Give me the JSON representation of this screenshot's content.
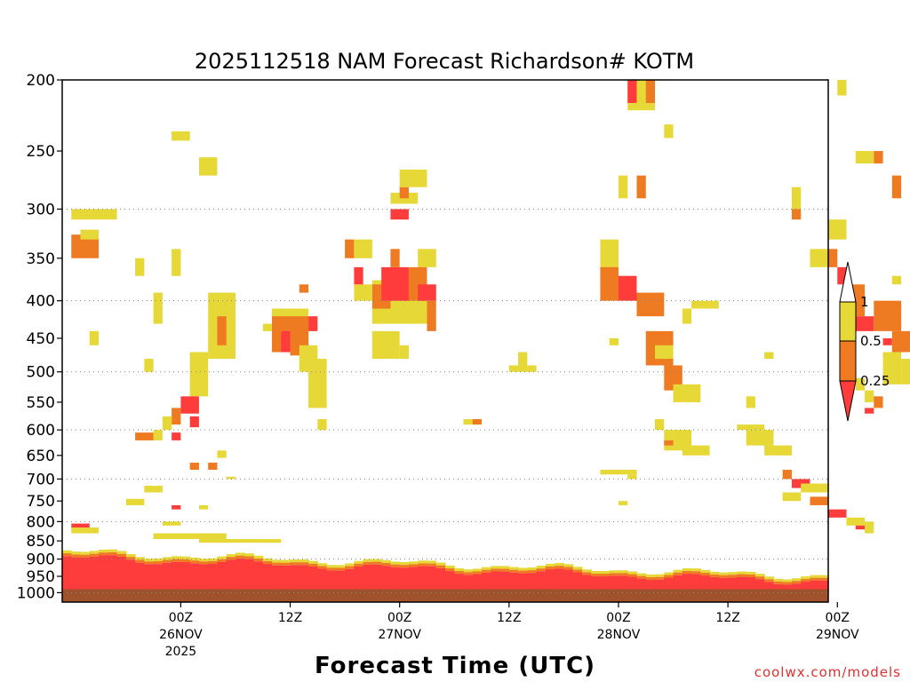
{
  "chart_data": {
    "type": "heatmap",
    "title": "2025112518 NAM Forecast Richardson# KOTM",
    "xlabel": "Forecast Time (UTC)",
    "ylabel": "",
    "credit": "coolwx.com/models",
    "x_range_hours": [
      -7,
      77
    ],
    "x_ticks": [
      {
        "hour": 6,
        "line1": "00Z",
        "line2": "26NOV",
        "line3": "2025"
      },
      {
        "hour": 18,
        "line1": "12Z",
        "line2": "",
        "line3": ""
      },
      {
        "hour": 30,
        "line1": "00Z",
        "line2": "27NOV",
        "line3": ""
      },
      {
        "hour": 42,
        "line1": "12Z",
        "line2": "",
        "line3": ""
      },
      {
        "hour": 54,
        "line1": "00Z",
        "line2": "28NOV",
        "line3": ""
      },
      {
        "hour": 66,
        "line1": "12Z",
        "line2": "",
        "line3": ""
      },
      {
        "hour": 78,
        "line1": "00Z",
        "line2": "29NOV",
        "line3": ""
      }
    ],
    "y_range_hPa": [
      200,
      1030
    ],
    "y_ticks": [
      200,
      250,
      300,
      350,
      400,
      450,
      500,
      550,
      600,
      650,
      700,
      750,
      800,
      850,
      900,
      950,
      1000
    ],
    "y_gridlines": [
      300,
      400,
      500,
      600,
      700,
      800,
      900,
      1000
    ],
    "legend": {
      "position": "right",
      "levels": [
        "1",
        "0.5",
        "0.25"
      ],
      "bins": [
        {
          "range": "0.5-1",
          "color": "#e6d836"
        },
        {
          "range": "0.25-0.5",
          "color": "#ee7a22"
        },
        {
          "range": "<0.25",
          "color": "#ff3c3c"
        }
      ]
    },
    "colors": {
      "yellow": "#e6d836",
      "orange": "#ee7a22",
      "red": "#ff3c3c",
      "ground": "#a0522d"
    },
    "surface_pressure_hPa": 1000,
    "cells": [
      [
        "y",
        -6,
        300,
        310,
        5
      ],
      [
        "o",
        -6,
        325,
        350,
        3
      ],
      [
        "y",
        -5,
        320,
        330,
        2
      ],
      [
        "y",
        5,
        235,
        242,
        2
      ],
      [
        "y",
        8,
        255,
        270,
        2
      ],
      [
        "y",
        3,
        390,
        430,
        1
      ],
      [
        "y",
        5,
        340,
        370,
        1
      ],
      [
        "y",
        1,
        350,
        370,
        1
      ],
      [
        "y",
        -4,
        440,
        460,
        1
      ],
      [
        "y",
        2,
        480,
        500,
        1
      ],
      [
        "y",
        9,
        390,
        480,
        3
      ],
      [
        "o",
        10,
        420,
        460,
        1
      ],
      [
        "y",
        7,
        470,
        540,
        2
      ],
      [
        "r",
        6,
        540,
        570,
        2
      ],
      [
        "o",
        5,
        560,
        590,
        1
      ],
      [
        "r",
        7,
        575,
        595,
        1
      ],
      [
        "y",
        4,
        575,
        600,
        1
      ],
      [
        "y",
        3,
        600,
        620,
        1
      ],
      [
        "o",
        1,
        605,
        620,
        2
      ],
      [
        "r",
        5,
        605,
        620,
        1
      ],
      [
        "o",
        7,
        665,
        680,
        1
      ],
      [
        "o",
        9,
        665,
        680,
        1
      ],
      [
        "y",
        10,
        640,
        655,
        1
      ],
      [
        "y",
        11,
        695,
        700,
        1
      ],
      [
        "y",
        2,
        715,
        730,
        2
      ],
      [
        "y",
        0,
        745,
        760,
        2
      ],
      [
        "r",
        5,
        760,
        770,
        1
      ],
      [
        "y",
        8,
        760,
        770,
        1
      ],
      [
        "r",
        -6,
        805,
        815,
        2
      ],
      [
        "y",
        -6,
        815,
        830,
        3
      ],
      [
        "y",
        4,
        800,
        810,
        2
      ],
      [
        "y",
        3,
        830,
        845,
        8
      ],
      [
        "y",
        8,
        845,
        855,
        9
      ],
      [
        "y",
        16,
        410,
        460,
        4
      ],
      [
        "o",
        16,
        420,
        470,
        4
      ],
      [
        "r",
        17,
        440,
        470,
        1
      ],
      [
        "o",
        18,
        430,
        475,
        2
      ],
      [
        "y",
        19,
        460,
        500,
        2
      ],
      [
        "y",
        20,
        480,
        560,
        2
      ],
      [
        "o",
        19,
        380,
        390,
        1
      ],
      [
        "r",
        20,
        420,
        440,
        1
      ],
      [
        "y",
        21,
        580,
        600,
        1
      ],
      [
        "y",
        15,
        430,
        440,
        1
      ],
      [
        "y",
        25,
        380,
        400,
        2
      ],
      [
        "y",
        25,
        330,
        350,
        2
      ],
      [
        "o",
        24,
        330,
        350,
        1
      ],
      [
        "r",
        25,
        360,
        380,
        1
      ],
      [
        "y",
        27,
        375,
        430,
        6
      ],
      [
        "o",
        27,
        380,
        410,
        2
      ],
      [
        "r",
        28,
        360,
        400,
        3
      ],
      [
        "o",
        29,
        340,
        360,
        1
      ],
      [
        "r",
        29,
        300,
        310,
        2
      ],
      [
        "y",
        29,
        285,
        295,
        3
      ],
      [
        "o",
        30,
        280,
        290,
        1
      ],
      [
        "y",
        30,
        265,
        280,
        3
      ],
      [
        "y",
        32,
        340,
        360,
        2
      ],
      [
        "o",
        31,
        360,
        400,
        2
      ],
      [
        "r",
        32,
        380,
        400,
        2
      ],
      [
        "o",
        33,
        400,
        440,
        1
      ],
      [
        "y",
        27,
        440,
        480,
        3
      ],
      [
        "y",
        30,
        460,
        480,
        1
      ],
      [
        "y",
        37,
        580,
        590,
        2
      ],
      [
        "o",
        38,
        580,
        590,
        1
      ],
      [
        "y",
        42,
        490,
        500,
        3
      ],
      [
        "y",
        43,
        470,
        490,
        1
      ],
      [
        "y",
        55,
        200,
        220,
        3
      ],
      [
        "r",
        55,
        200,
        215,
        1
      ],
      [
        "o",
        57,
        200,
        215,
        1
      ],
      [
        "y",
        54,
        270,
        290,
        1
      ],
      [
        "o",
        56,
        270,
        290,
        1
      ],
      [
        "y",
        59,
        230,
        240,
        1
      ],
      [
        "y",
        52,
        330,
        380,
        2
      ],
      [
        "o",
        52,
        360,
        400,
        2
      ],
      [
        "r",
        54,
        370,
        400,
        2
      ],
      [
        "o",
        56,
        390,
        420,
        3
      ],
      [
        "y",
        53,
        450,
        460,
        1
      ],
      [
        "o",
        57,
        440,
        490,
        3
      ],
      [
        "y",
        58,
        460,
        480,
        2
      ],
      [
        "o",
        59,
        490,
        530,
        2
      ],
      [
        "y",
        60,
        520,
        550,
        3
      ],
      [
        "y",
        61,
        410,
        430,
        1
      ],
      [
        "y",
        62,
        400,
        410,
        3
      ],
      [
        "y",
        58,
        580,
        600,
        1
      ],
      [
        "y",
        59,
        600,
        640,
        3
      ],
      [
        "o",
        59,
        620,
        630,
        1
      ],
      [
        "y",
        61,
        630,
        650,
        3
      ],
      [
        "y",
        52,
        680,
        690,
        4
      ],
      [
        "y",
        55,
        690,
        700,
        1
      ],
      [
        "y",
        54,
        750,
        760,
        1
      ],
      [
        "y",
        67,
        590,
        600,
        3
      ],
      [
        "y",
        68,
        600,
        630,
        3
      ],
      [
        "y",
        70,
        630,
        650,
        3
      ],
      [
        "o",
        72,
        680,
        700,
        1
      ],
      [
        "r",
        73,
        700,
        720,
        2
      ],
      [
        "y",
        74,
        710,
        730,
        3
      ],
      [
        "y",
        72,
        730,
        750,
        2
      ],
      [
        "o",
        75,
        740,
        760,
        2
      ],
      [
        "r",
        77,
        770,
        790,
        2
      ],
      [
        "y",
        79,
        790,
        810,
        2
      ],
      [
        "r",
        80,
        810,
        820,
        1
      ],
      [
        "y",
        81,
        800,
        830,
        1
      ],
      [
        "y",
        68,
        540,
        560,
        1
      ],
      [
        "y",
        70,
        470,
        480,
        1
      ],
      [
        "y",
        75,
        340,
        360,
        2
      ],
      [
        "y",
        73,
        280,
        300,
        1
      ],
      [
        "o",
        73,
        300,
        310,
        1
      ],
      [
        "y",
        77,
        310,
        330,
        2
      ],
      [
        "o",
        77,
        340,
        360,
        1
      ],
      [
        "r",
        78,
        360,
        380,
        1
      ],
      [
        "o",
        79,
        380,
        420,
        2
      ],
      [
        "r",
        80,
        420,
        440,
        2
      ],
      [
        "o",
        82,
        400,
        440,
        3
      ],
      [
        "r",
        83,
        450,
        460,
        1
      ],
      [
        "y",
        83,
        470,
        520,
        2
      ],
      [
        "o",
        84,
        440,
        470,
        2
      ],
      [
        "y",
        85,
        480,
        520,
        2
      ],
      [
        "y",
        80,
        250,
        260,
        2
      ],
      [
        "o",
        82,
        250,
        260,
        1
      ],
      [
        "o",
        84,
        270,
        290,
        1
      ],
      [
        "y",
        84,
        370,
        380,
        1
      ],
      [
        "y",
        78,
        200,
        210,
        1
      ],
      [
        "y",
        80,
        510,
        530,
        1
      ],
      [
        "y",
        81,
        530,
        550,
        1
      ],
      [
        "r",
        81,
        560,
        570,
        1
      ],
      [
        "o",
        82,
        540,
        560,
        1
      ],
      [
        "y",
        86,
        330,
        360,
        2
      ],
      [
        "y",
        86,
        850,
        860,
        3
      ]
    ]
  }
}
